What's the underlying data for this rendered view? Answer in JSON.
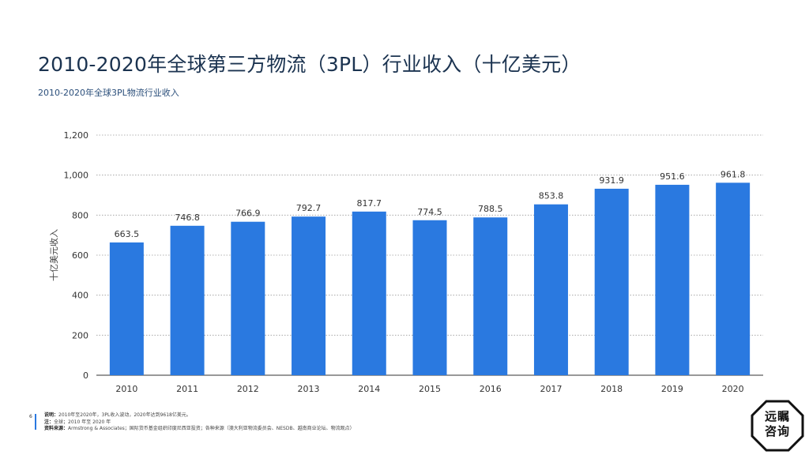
{
  "title": "2010-2020年全球第三方物流（3PL）行业收入（十亿美元）",
  "subtitle": "2010-2020年全球3PL物流行业收入",
  "footer": {
    "page_number": "6",
    "note_label": "说明：",
    "note_text": "2010年至2020年，3PL收入波动，2020年达到9618亿美元。",
    "scope_label": "注：",
    "scope_text": "全球；2010 年至 2020 年",
    "source_label": "资料来源：",
    "source_text": "Armstrong & Associates；国际货币基金组织印度尼西亚投资；各种来源（澳大利亚物流委员会、NESDB、越南商业论坛、物流观点）"
  },
  "logo": {
    "line1": "远瞩",
    "line2": "咨询"
  },
  "colors": {
    "bar": "#2a79e0",
    "title": "#1b3350",
    "grid": "#9a9a9a"
  },
  "chart_data": {
    "type": "bar",
    "categories": [
      "2010",
      "2011",
      "2012",
      "2013",
      "2014",
      "2015",
      "2016",
      "2017",
      "2018",
      "2019",
      "2020"
    ],
    "values": [
      663.5,
      746.8,
      766.9,
      792.7,
      817.7,
      774.5,
      788.5,
      853.8,
      931.9,
      951.6,
      961.8
    ],
    "data_labels": [
      "663.5",
      "746.8",
      "766.9",
      "792.7",
      "817.7",
      "774.5",
      "788.5",
      "853.8",
      "931.9",
      "951.6",
      "961.8"
    ],
    "ylabel": "十亿美元收入",
    "ylim": [
      0,
      1200
    ],
    "yticks": [
      0,
      200,
      400,
      600,
      800,
      1000,
      1200
    ],
    "ytick_labels": [
      "0",
      "200",
      "400",
      "600",
      "800",
      "1,000",
      "1,200"
    ],
    "grid": true
  }
}
